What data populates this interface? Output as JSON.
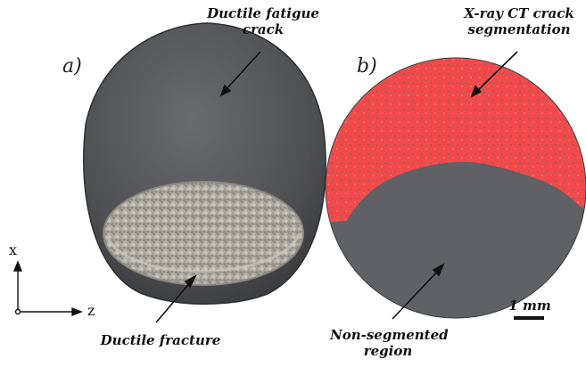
{
  "panels": {
    "a": {
      "letter": "a)",
      "label_top_line1": "Ductile fatigue",
      "label_top_line2": "crack",
      "label_bottom": "Ductile fracture"
    },
    "b": {
      "letter": "b)",
      "label_top_line1": "X-ray CT crack",
      "label_top_line2": "segmentation",
      "label_bottom_line1": "Non-segmented",
      "label_bottom_line2": "region",
      "scale_label": "1 mm"
    }
  },
  "axes": {
    "x_label": "x",
    "z_label": "z"
  },
  "colors": {
    "segmentation": "#f24a4a",
    "nonsegmented": "#5f6166",
    "fatigue_surface": "#55565a",
    "fracture_surface": "#b6b2a8"
  }
}
